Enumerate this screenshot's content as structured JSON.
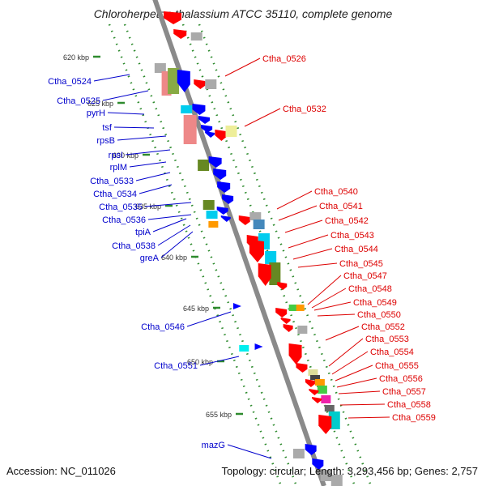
{
  "title": "Chloroherpeton thalassium ATCC 35110, complete genome",
  "accession": "Accession: NC_011026",
  "topology": "Topology: circular; Length: 3,293,456 bp; Genes: 2,757",
  "colors": {
    "backbone": "#8a8a8a",
    "tick": "#2e8b2e",
    "left_label": "#0000cc",
    "right_label": "#dd0000",
    "forward_gene": "#0000ff",
    "reverse_gene": "#ff0000"
  },
  "kbp_ticks": [
    "620 kbp",
    "625 kbp",
    "630 kbp",
    "635 kbp",
    "640 kbp",
    "645 kbp",
    "650 kbp",
    "655 kbp"
  ],
  "left_labels": [
    "Ctha_0524",
    "Ctha_0525",
    "pyrH",
    "tsf",
    "rpsB",
    "rpsI",
    "rplM",
    "Ctha_0533",
    "Ctha_0534",
    "Ctha_0535",
    "Ctha_0536",
    "tpiA",
    "Ctha_0538",
    "greA",
    "Ctha_0546",
    "Ctha_0551",
    "mazG"
  ],
  "right_labels": [
    "Ctha_0526",
    "Ctha_0532",
    "Ctha_0540",
    "Ctha_0541",
    "Ctha_0542",
    "Ctha_0543",
    "Ctha_0544",
    "Ctha_0545",
    "Ctha_0547",
    "Ctha_0548",
    "Ctha_0549",
    "Ctha_0550",
    "Ctha_0552",
    "Ctha_0553",
    "Ctha_0554",
    "Ctha_0555",
    "Ctha_0556",
    "Ctha_0557",
    "Ctha_0558",
    "Ctha_0559"
  ]
}
